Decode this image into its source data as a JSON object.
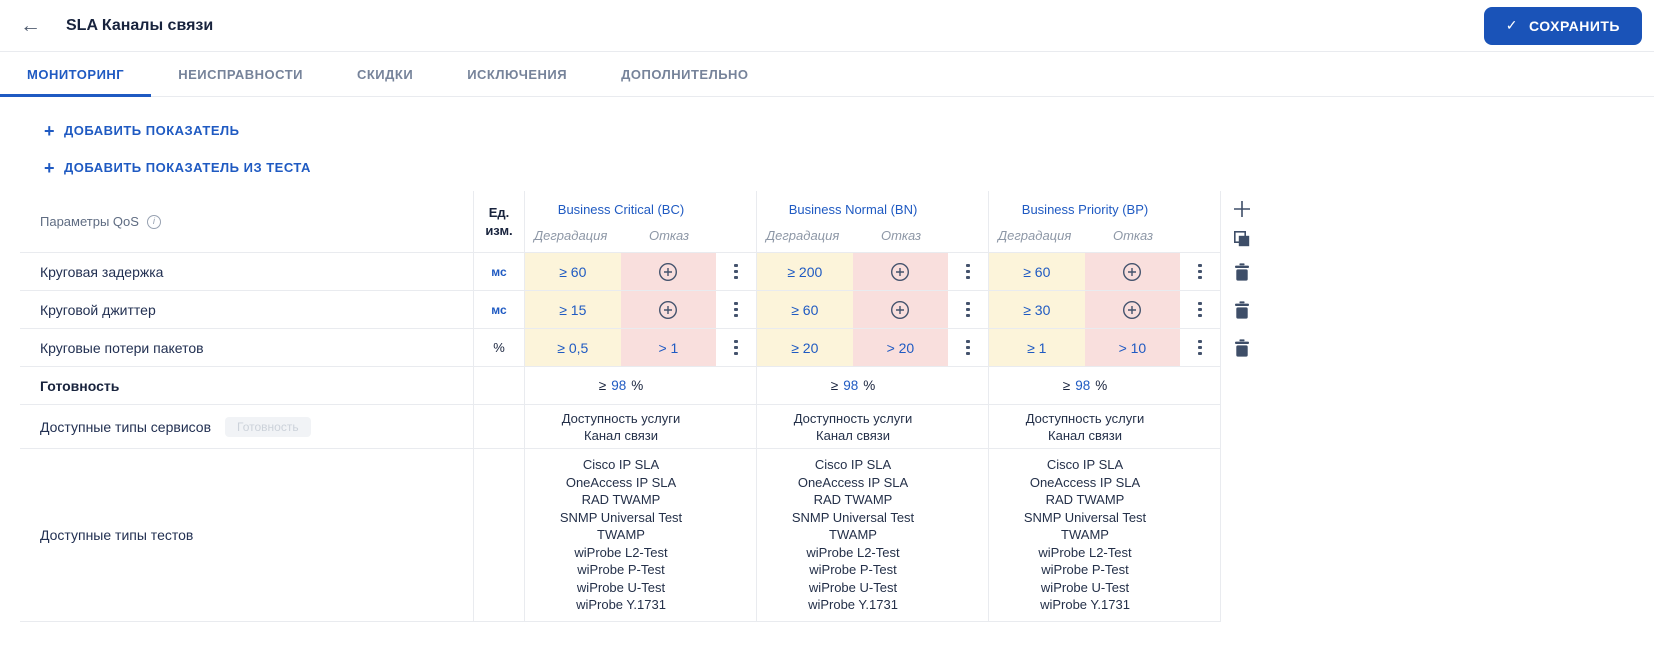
{
  "colors": {
    "accent_blue": "#1f5ac2",
    "save_button_bg": "#1a53b8",
    "degradation_cell_bg": "#fcf4da",
    "failure_cell_bg": "#f9dfdd",
    "dark_text": "#18233d",
    "icon_slate": "#3e4e68",
    "inactive_tab": "#76839a"
  },
  "icons": {
    "back": "←",
    "save_check": "✓",
    "info": "i",
    "link_plus": "+",
    "add_column": "plus-svg",
    "copy": "copy-svg",
    "kebab": "three-dots",
    "trash": "trash-svg",
    "circle_plus": "circle-plus-svg"
  },
  "header": {
    "title": "SLA Каналы связи",
    "save_label": "СОХРАНИТЬ"
  },
  "tabs": [
    {
      "label": "МОНИТОРИНГ",
      "active": true
    },
    {
      "label": "НЕИСПРАВНОСТИ",
      "active": false
    },
    {
      "label": "СКИДКИ",
      "active": false
    },
    {
      "label": "ИСКЛЮЧЕНИЯ",
      "active": false
    },
    {
      "label": "ДОПОЛНИТЕЛЬНО",
      "active": false
    }
  ],
  "actions": {
    "add_indicator": "ДОБАВИТЬ ПОКАЗАТЕЛЬ",
    "add_indicator_from_test": "ДОБАВИТЬ ПОКАЗАТЕЛЬ ИЗ ТЕСТА"
  },
  "table": {
    "params_header": "Параметры QoS",
    "unit_header_top": "Ед.",
    "unit_header_bottom": "изм.",
    "groups": [
      {
        "name": "Business Critical (BC)",
        "degradation_label": "Деградация",
        "fail_label": "Отказ"
      },
      {
        "name": "Business Normal (BN)",
        "degradation_label": "Деградация",
        "fail_label": "Отказ"
      },
      {
        "name": "Business Priority (BP)",
        "degradation_label": "Деградация",
        "fail_label": "Отказ"
      }
    ],
    "rows": [
      {
        "label": "Круговая задержка",
        "unit": "мс",
        "cells": [
          {
            "degradation": "≥ 60",
            "failure": ""
          },
          {
            "degradation": "≥ 200",
            "failure": ""
          },
          {
            "degradation": "≥ 60",
            "failure": ""
          }
        ]
      },
      {
        "label": "Круговой джиттер",
        "unit": "мс",
        "cells": [
          {
            "degradation": "≥ 15",
            "failure": ""
          },
          {
            "degradation": "≥ 60",
            "failure": ""
          },
          {
            "degradation": "≥ 30",
            "failure": ""
          }
        ]
      },
      {
        "label": "Круговые потери пакетов",
        "unit": "%",
        "cells": [
          {
            "degradation": "≥ 0,5",
            "failure": "> 1"
          },
          {
            "degradation": "≥ 20",
            "failure": "> 20"
          },
          {
            "degradation": "≥ 1",
            "failure": "> 10"
          }
        ]
      }
    ],
    "availability_row": {
      "label": "Готовность",
      "prefix": "≥",
      "value": "98",
      "suffix": "%"
    },
    "service_types_row": {
      "label": "Доступные типы сервисов",
      "badge": "Готовность",
      "lines": [
        "Доступность услуги",
        "Канал связи"
      ]
    },
    "test_types_row": {
      "label": "Доступные типы тестов",
      "lines": [
        "Cisco IP SLA",
        "OneAccess IP SLA",
        "RAD TWAMP",
        "SNMP Universal Test",
        "TWAMP",
        "wiProbe L2-Test",
        "wiProbe P-Test",
        "wiProbe U-Test",
        "wiProbe Y.1731"
      ]
    }
  }
}
